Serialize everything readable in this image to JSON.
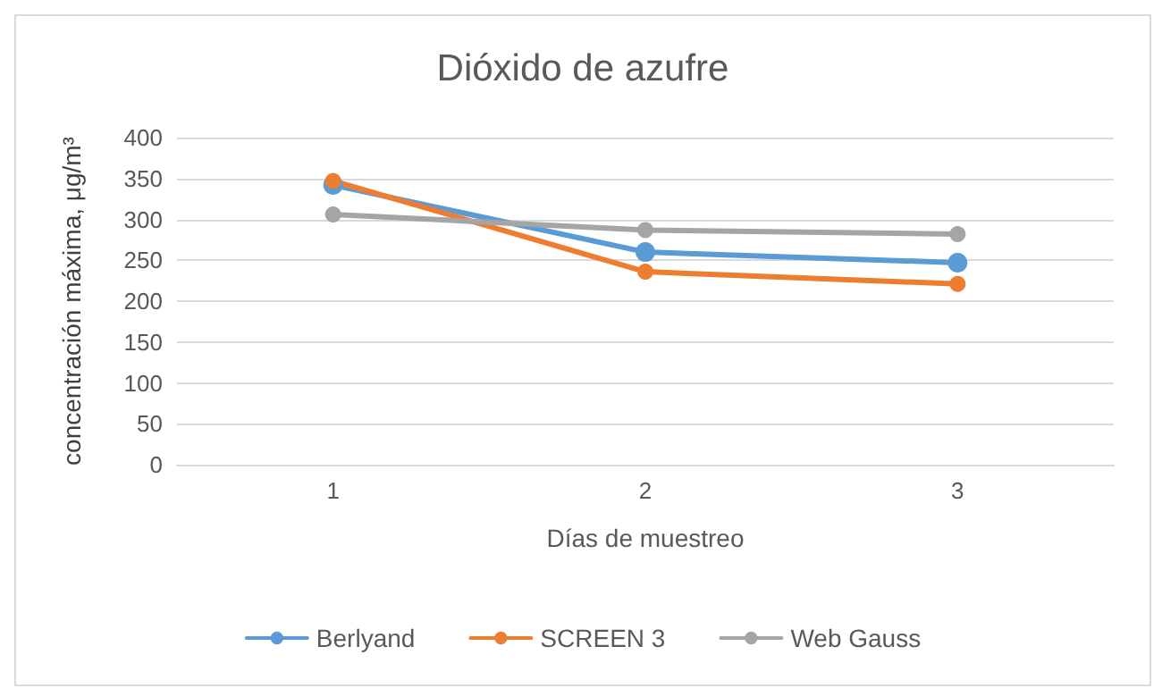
{
  "chart_data": {
    "type": "line",
    "title": "Dióxido de azufre",
    "xlabel": "Días de muestreo",
    "ylabel": "concentración máxima, μg/m³",
    "categories": [
      "1",
      "2",
      "3"
    ],
    "series": [
      {
        "name": "Berlyand",
        "color": "#5b9bd5",
        "values": [
          342,
          260,
          247
        ]
      },
      {
        "name": "SCREEN 3",
        "color": "#ed7d31",
        "values": [
          347,
          236,
          221
        ]
      },
      {
        "name": "Web Gauss",
        "color": "#a5a5a5",
        "values": [
          306,
          287,
          282
        ]
      }
    ],
    "ylim": [
      0,
      400
    ],
    "yticks": [
      0,
      50,
      100,
      150,
      200,
      250,
      300,
      350,
      400
    ],
    "grid": "y",
    "legend": "bottom",
    "marker": "circle",
    "line_style": "solid"
  }
}
